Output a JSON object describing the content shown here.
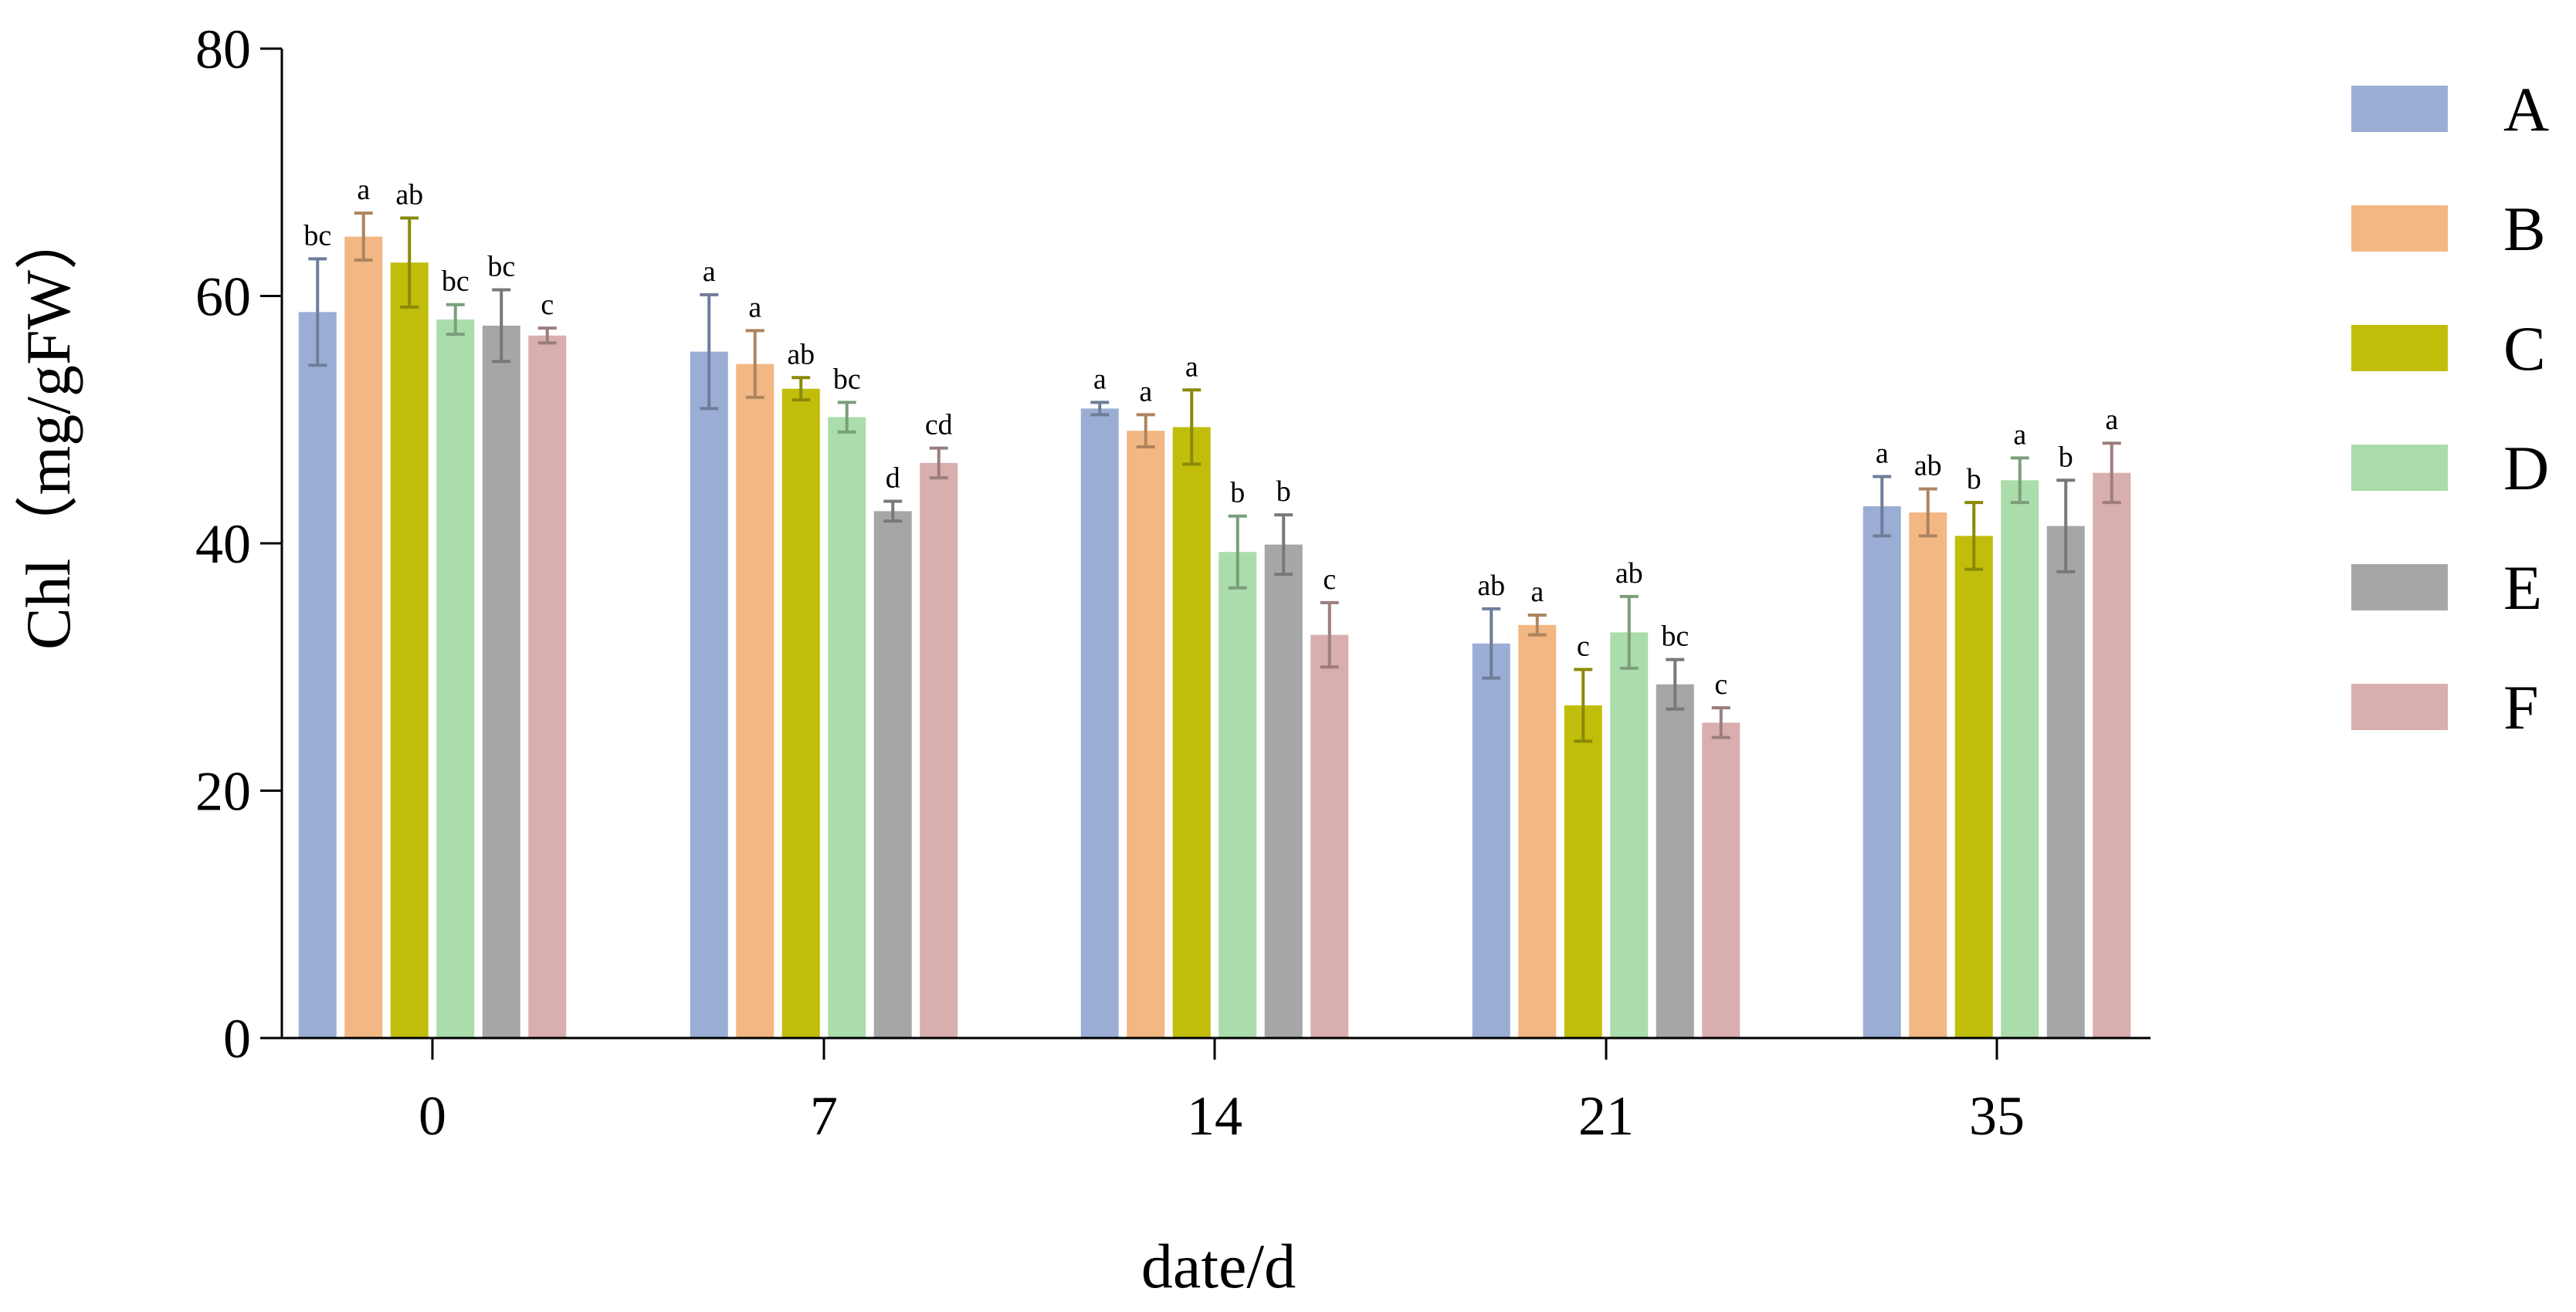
{
  "chart_data": {
    "type": "bar",
    "title": "",
    "xlabel": "date/d",
    "ylabel": "Chl（mg/gFW）",
    "ylim": [
      0,
      80
    ],
    "yticks": [
      0,
      20,
      40,
      60,
      80
    ],
    "categories": [
      "0",
      "7",
      "14",
      "21",
      "35"
    ],
    "grid": false,
    "legend_position": "right",
    "series": [
      {
        "name": "A",
        "color": "#9AAED5",
        "values": [
          58.7,
          55.5,
          50.9,
          31.9,
          43.0
        ],
        "errors": [
          4.3,
          4.6,
          0.5,
          2.8,
          2.4
        ],
        "labels": [
          "bc",
          "a",
          "a",
          "ab",
          "a"
        ]
      },
      {
        "name": "B",
        "color": "#F2B783",
        "values": [
          64.8,
          54.5,
          49.1,
          33.4,
          42.5
        ],
        "errors": [
          1.9,
          2.7,
          1.3,
          0.8,
          1.9
        ],
        "labels": [
          "a",
          "a",
          "a",
          "a",
          "ab"
        ]
      },
      {
        "name": "C",
        "color": "#C0BE0B",
        "values": [
          62.7,
          52.5,
          49.4,
          26.9,
          40.6
        ],
        "errors": [
          3.6,
          0.9,
          3.0,
          2.9,
          2.7
        ],
        "labels": [
          "ab",
          "ab",
          "a",
          "c",
          "b"
        ]
      },
      {
        "name": "D",
        "color": "#ABDCAB",
        "values": [
          58.1,
          50.2,
          39.3,
          32.8,
          45.1
        ],
        "errors": [
          1.2,
          1.2,
          2.9,
          2.9,
          1.8
        ],
        "labels": [
          "bc",
          "bc",
          "b",
          "ab",
          "a"
        ]
      },
      {
        "name": "E",
        "color": "#A5A6A8",
        "values": [
          57.6,
          42.6,
          39.9,
          28.6,
          41.4
        ],
        "errors": [
          2.9,
          0.8,
          2.4,
          2.0,
          3.7
        ],
        "labels": [
          "bc",
          "d",
          "b",
          "bc",
          "b"
        ]
      },
      {
        "name": "F",
        "color": "#D9AEAE",
        "values": [
          56.8,
          46.5,
          32.6,
          25.5,
          45.7
        ],
        "errors": [
          0.6,
          1.2,
          2.6,
          1.2,
          2.4
        ],
        "labels": [
          "c",
          "cd",
          "c",
          "c",
          "a"
        ]
      }
    ]
  }
}
